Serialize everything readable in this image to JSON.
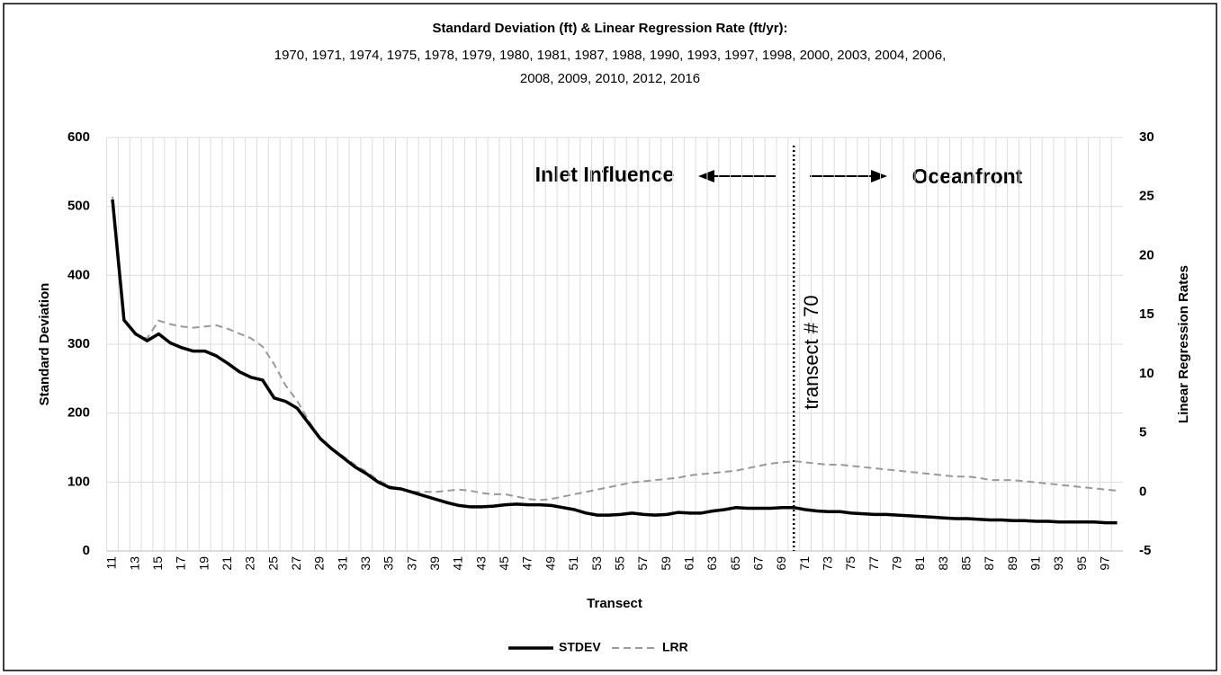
{
  "chart_data": {
    "type": "line",
    "title": "Standard Deviation (ft) & Linear Regression Rate (ft/yr):",
    "subtitle": [
      "1970, 1971, 1974, 1975, 1978, 1979, 1980, 1981, 1987, 1988, 1990, 1993, 1997, 1998, 2000, 2003, 2004, 2006,",
      "2008, 2009, 2010, 2012, 2016"
    ],
    "x_label": "Transect",
    "y_label": "Standard Deviation",
    "y2_label": "Linear Regression Rates",
    "x": [
      11,
      12,
      13,
      14,
      15,
      16,
      17,
      18,
      19,
      20,
      21,
      22,
      23,
      24,
      25,
      26,
      27,
      28,
      29,
      30,
      31,
      32,
      33,
      34,
      35,
      36,
      37,
      38,
      39,
      40,
      41,
      42,
      43,
      44,
      45,
      46,
      47,
      48,
      49,
      50,
      51,
      52,
      53,
      54,
      55,
      56,
      57,
      58,
      59,
      60,
      61,
      62,
      63,
      64,
      65,
      66,
      67,
      68,
      69,
      70,
      71,
      72,
      73,
      74,
      75,
      76,
      77,
      78,
      79,
      80,
      81,
      82,
      83,
      84,
      85,
      86,
      87,
      88,
      89,
      90,
      91,
      92,
      93,
      94,
      95,
      96,
      97,
      98
    ],
    "xlim": [
      10.5,
      98.5
    ],
    "xticks": [
      11,
      13,
      15,
      17,
      19,
      21,
      23,
      25,
      27,
      29,
      31,
      33,
      35,
      37,
      39,
      41,
      43,
      45,
      47,
      49,
      51,
      53,
      55,
      57,
      59,
      61,
      63,
      65,
      67,
      69,
      71,
      73,
      75,
      77,
      79,
      81,
      83,
      85,
      87,
      89,
      91,
      93,
      95,
      97
    ],
    "ylim": [
      0,
      600
    ],
    "yticks": [
      0,
      100,
      200,
      300,
      400,
      500,
      600
    ],
    "y2lim": [
      -5,
      30
    ],
    "y2ticks": [
      -5,
      0,
      5,
      10,
      15,
      20,
      25,
      30
    ],
    "grid": true,
    "legend": "bottom",
    "series": [
      {
        "name": "STDEV",
        "color": "#000000",
        "dash": "solid",
        "values": [
          510,
          335,
          315,
          305,
          315,
          302,
          295,
          290,
          290,
          283,
          272,
          260,
          252,
          248,
          222,
          217,
          207,
          185,
          163,
          148,
          135,
          122,
          112,
          100,
          92,
          90,
          85,
          80,
          75,
          70,
          66,
          64,
          64,
          65,
          67,
          68,
          67,
          67,
          66,
          63,
          60,
          55,
          52,
          52,
          53,
          55,
          53,
          52,
          53,
          56,
          55,
          55,
          58,
          60,
          63,
          62,
          62,
          62,
          63,
          63,
          60,
          58,
          57,
          57,
          55,
          54,
          53,
          53,
          52,
          51,
          50,
          49,
          48,
          47,
          47,
          46,
          45,
          45,
          44,
          44,
          43,
          43,
          42,
          42,
          42,
          42,
          41,
          41
        ]
      },
      {
        "name": "LRR",
        "color": "#999999",
        "dash": "dashed",
        "axis": "y2",
        "values": [
          25,
          14.5,
          13.3,
          13,
          14.5,
          14.2,
          14,
          13.9,
          14,
          14.1,
          13.8,
          13.4,
          13,
          12.3,
          10.8,
          9,
          7.7,
          6,
          4.5,
          3.7,
          3,
          2.3,
          1.7,
          1,
          0.5,
          0.2,
          0,
          0,
          0,
          0.1,
          0.2,
          0.1,
          -0.1,
          -0.2,
          -0.2,
          -0.4,
          -0.6,
          -0.7,
          -0.6,
          -0.4,
          -0.2,
          0,
          0.2,
          0.4,
          0.6,
          0.8,
          0.9,
          1,
          1.1,
          1.2,
          1.4,
          1.5,
          1.6,
          1.7,
          1.8,
          2,
          2.2,
          2.4,
          2.5,
          2.6,
          2.5,
          2.4,
          2.3,
          2.3,
          2.2,
          2.1,
          2,
          1.9,
          1.8,
          1.7,
          1.6,
          1.5,
          1.4,
          1.3,
          1.3,
          1.2,
          1,
          1,
          1,
          0.9,
          0.8,
          0.7,
          0.6,
          0.5,
          0.4,
          0.3,
          0.2,
          0.1
        ]
      }
    ],
    "reference_line": {
      "x": 70,
      "label": "transect # 70"
    },
    "annotations": [
      "Inlet Influence",
      "Oceanfront"
    ]
  }
}
